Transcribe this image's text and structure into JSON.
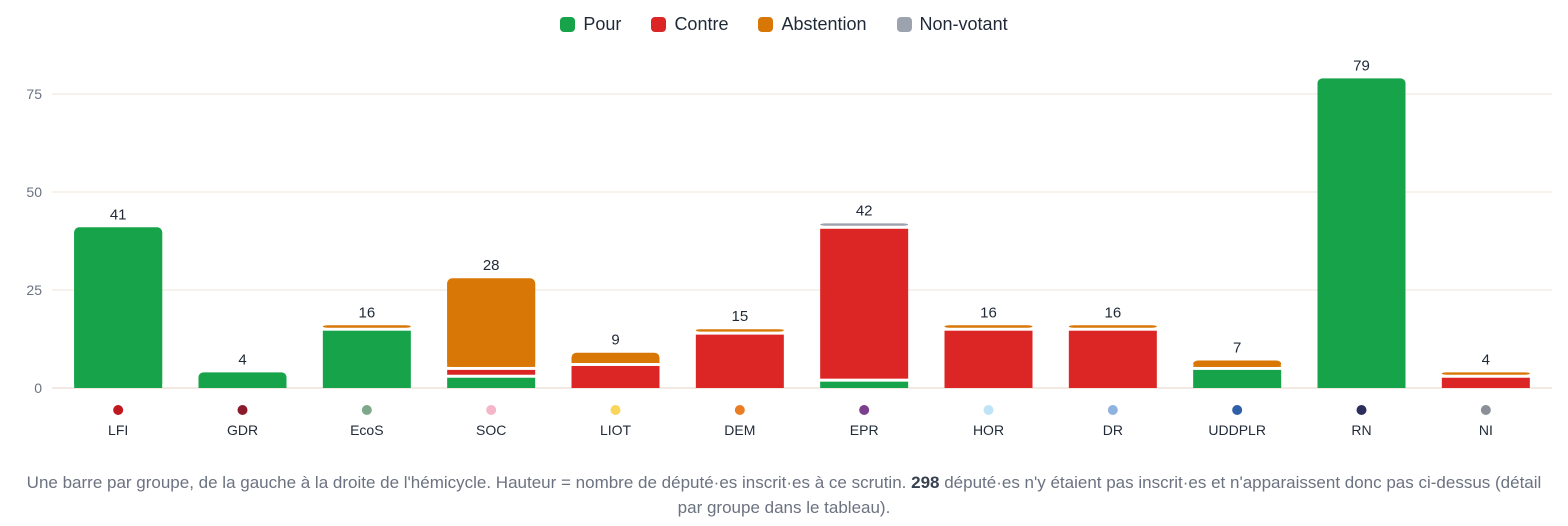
{
  "legend": [
    {
      "label": "Pour",
      "color": "#16a34a"
    },
    {
      "label": "Contre",
      "color": "#dc2626"
    },
    {
      "label": "Abstention",
      "color": "#d97706"
    },
    {
      "label": "Non-votant",
      "color": "#9ca3af"
    }
  ],
  "chart_data": {
    "type": "bar",
    "stacked": true,
    "ylim": [
      0,
      85
    ],
    "yticks": [
      0,
      25,
      50,
      75
    ],
    "grid": true,
    "legend_position": "top",
    "categories": [
      "LFI",
      "GDR",
      "EcoS",
      "SOC",
      "LIOT",
      "DEM",
      "EPR",
      "HOR",
      "DR",
      "UDDPLR",
      "RN",
      "NI"
    ],
    "group_colors": [
      "#c0181f",
      "#8b1a2b",
      "#7fa88a",
      "#f4b6c8",
      "#f9d55a",
      "#ea7d24",
      "#7b3f8e",
      "#bfe3f7",
      "#8fb3df",
      "#2e5fa8",
      "#2b2d5c",
      "#8a8f98"
    ],
    "totals": [
      41,
      4,
      16,
      28,
      9,
      15,
      42,
      16,
      16,
      7,
      79,
      4
    ],
    "series": [
      {
        "name": "Pour",
        "color": "#16a34a",
        "values": [
          41,
          4,
          15,
          3,
          0,
          0,
          2,
          0,
          0,
          5,
          79,
          0
        ]
      },
      {
        "name": "Contre",
        "color": "#dc2626",
        "values": [
          0,
          0,
          0,
          2,
          6,
          14,
          39,
          15,
          15,
          0,
          0,
          3
        ]
      },
      {
        "name": "Abstention",
        "color": "#d97706",
        "values": [
          0,
          0,
          1,
          23,
          3,
          1,
          0,
          1,
          1,
          2,
          0,
          1
        ]
      },
      {
        "name": "Non-votant",
        "color": "#9ca3af",
        "values": [
          0,
          0,
          0,
          0,
          0,
          0,
          1,
          0,
          0,
          0,
          0,
          0
        ]
      }
    ]
  },
  "footnote": {
    "before": "Une barre par groupe, de la gauche à la droite de l'hémicycle. Hauteur = nombre de député·es inscrit·es à ce scrutin. ",
    "count": "298",
    "after": " député·es n'y étaient pas inscrit·es et n'apparaissent donc pas ci-dessus (détail par groupe dans le tableau)."
  }
}
